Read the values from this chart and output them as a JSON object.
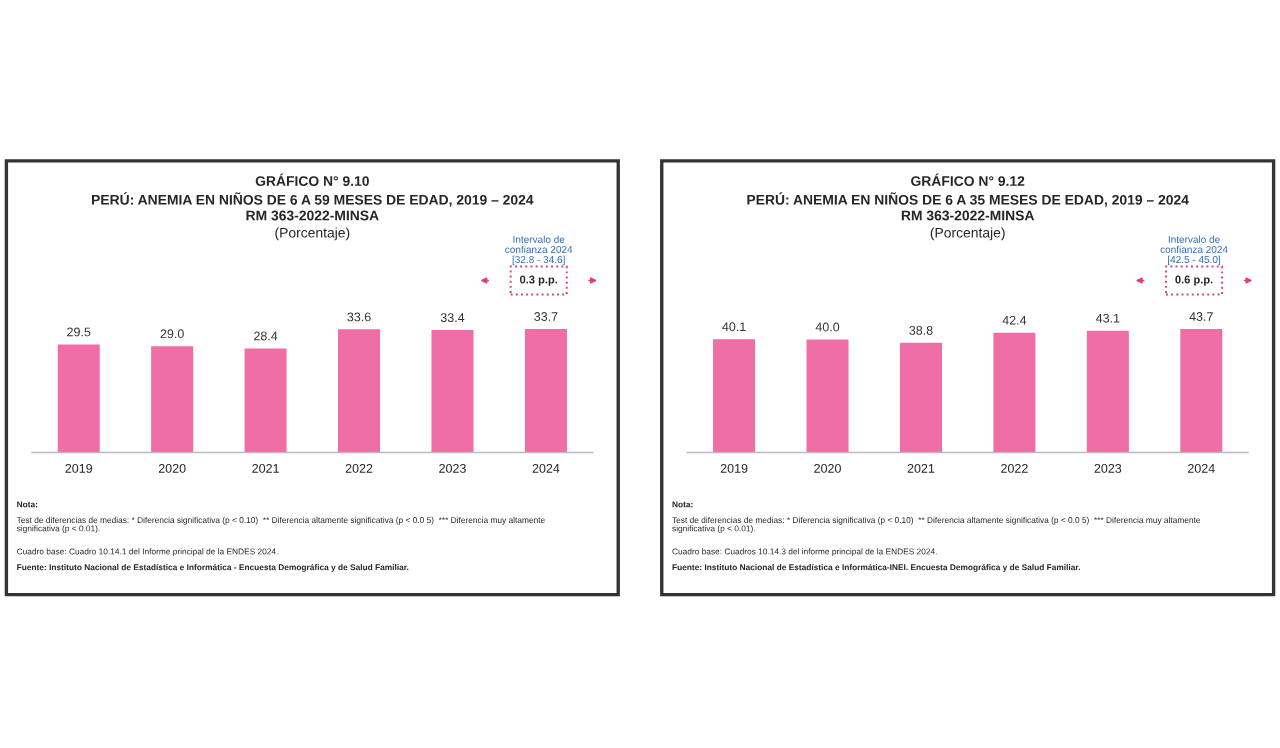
{
  "chart_data": [
    {
      "type": "bar",
      "title": "GRÁFICO N° 9.10",
      "subtitle": "PERÚ: ANEMIA EN NIÑOS DE 6 A 59 MESES DE EDAD, 2019 – 2024\nRM 363-2022-MINSA\n(Porcentaje)",
      "categories": [
        "2019",
        "2020",
        "2021",
        "2022",
        "2023",
        "2024"
      ],
      "values": [
        29.5,
        29.0,
        28.4,
        33.6,
        33.4,
        33.7
      ],
      "value_labels": [
        "29.5",
        "29.0",
        "28.4",
        "33.6",
        "33.4",
        "33.7"
      ],
      "color": "#f06ea6",
      "annotations": [
        "Intervalo de\nconfianza 2024\n[32.8 - 34.6]",
        "0.3 p.p.",
        "Nota:",
        "Test de diferencias de medias: * Diferencia significativa (p < 0.10)  ** Diferencia altamente significativa (p < 0.0 5)  *** Diferencia muy altamente\nsignificativa (p < 0.01).",
        "Cuadro base: Cuadro 10.14.1 del Informe principal de la ENDES 2024.",
        "Fuente: Instituto Nacional de Estadística e Informática - Encuesta Demográfica y de Salud Familiar."
      ]
    },
    {
      "type": "bar",
      "title": "GRÁFICO N° 9.12",
      "subtitle": "PERÚ: ANEMIA EN NIÑOS DE 6 A 35 MESES DE EDAD, 2019 – 2024\nRM 363-2022-MINSA\n(Porcentaje)",
      "categories": [
        "2019",
        "2020",
        "2021",
        "2022",
        "2023",
        "2024"
      ],
      "values": [
        40.1,
        40.0,
        38.8,
        42.4,
        43.1,
        43.7
      ],
      "value_labels": [
        "40.1",
        "40.0",
        "38.8",
        "42.4",
        "43.1",
        "43.7"
      ],
      "color": "#f06ea6",
      "annotations": [
        "Intervalo de\nconfianza 2024\n[42.5 - 45.0]",
        "0.6 p.p.",
        "Nota:",
        "Test de diferencias de medias: * Diferencia significativa (p < 0.10)  ** Diferencia altamente significativa (p < 0.0 5)  *** Diferencia muy altamente\nsignificativa (p < 0.01).",
        "Cuadro base: Cuadros 10.14.3 del informe principal de la ENDES 2024.",
        "Fuente: Instituto Nacional de Estadística e Informática-INEI. Encuesta Demográfica y de Salud Familiar."
      ]
    }
  ]
}
